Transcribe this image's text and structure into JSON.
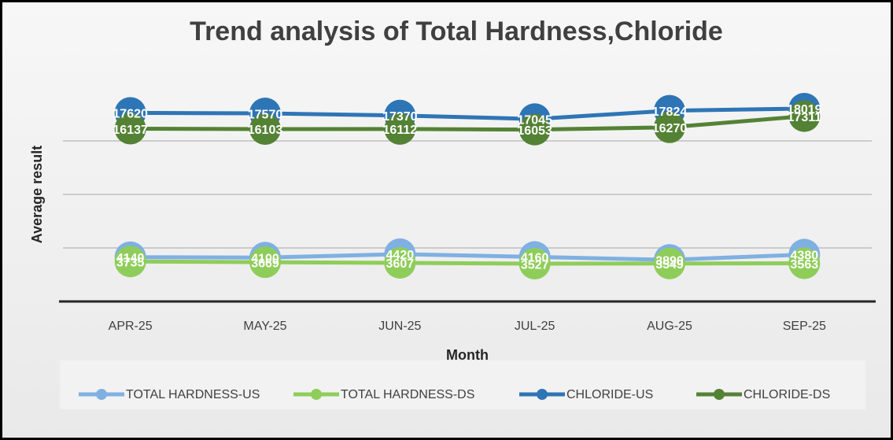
{
  "chart_data": {
    "type": "line",
    "title": "Trend analysis of  Total Hardness,Chloride",
    "y_label": "Average result",
    "x_label": "Month",
    "categories": [
      "APR-25",
      "MAY-25",
      "JUN-25",
      "JUL-25",
      "AUG-25",
      "SEP-25"
    ],
    "series": [
      {
        "name": "TOTAL HARDNESS-US",
        "color": "#7fb0e2",
        "values": [
          4140,
          4100,
          4420,
          4160,
          3890,
          4380
        ]
      },
      {
        "name": "TOTAL HARDNESS-DS",
        "color": "#8fcd5a",
        "values": [
          3735,
          3669,
          3607,
          3527,
          3549,
          3563
        ]
      },
      {
        "name": "CHLORIDE-US",
        "color": "#2e75b6",
        "values": [
          17620,
          17570,
          17370,
          17045,
          17824,
          18019
        ]
      },
      {
        "name": "CHLORIDE-DS",
        "color": "#548235",
        "values": [
          16137,
          16103,
          16112,
          16053,
          16270,
          17311
        ]
      }
    ],
    "ylim": [
      0,
      20000
    ],
    "yticks": [
      5000,
      10000,
      15000
    ],
    "grid": true,
    "legend": "bottom"
  }
}
